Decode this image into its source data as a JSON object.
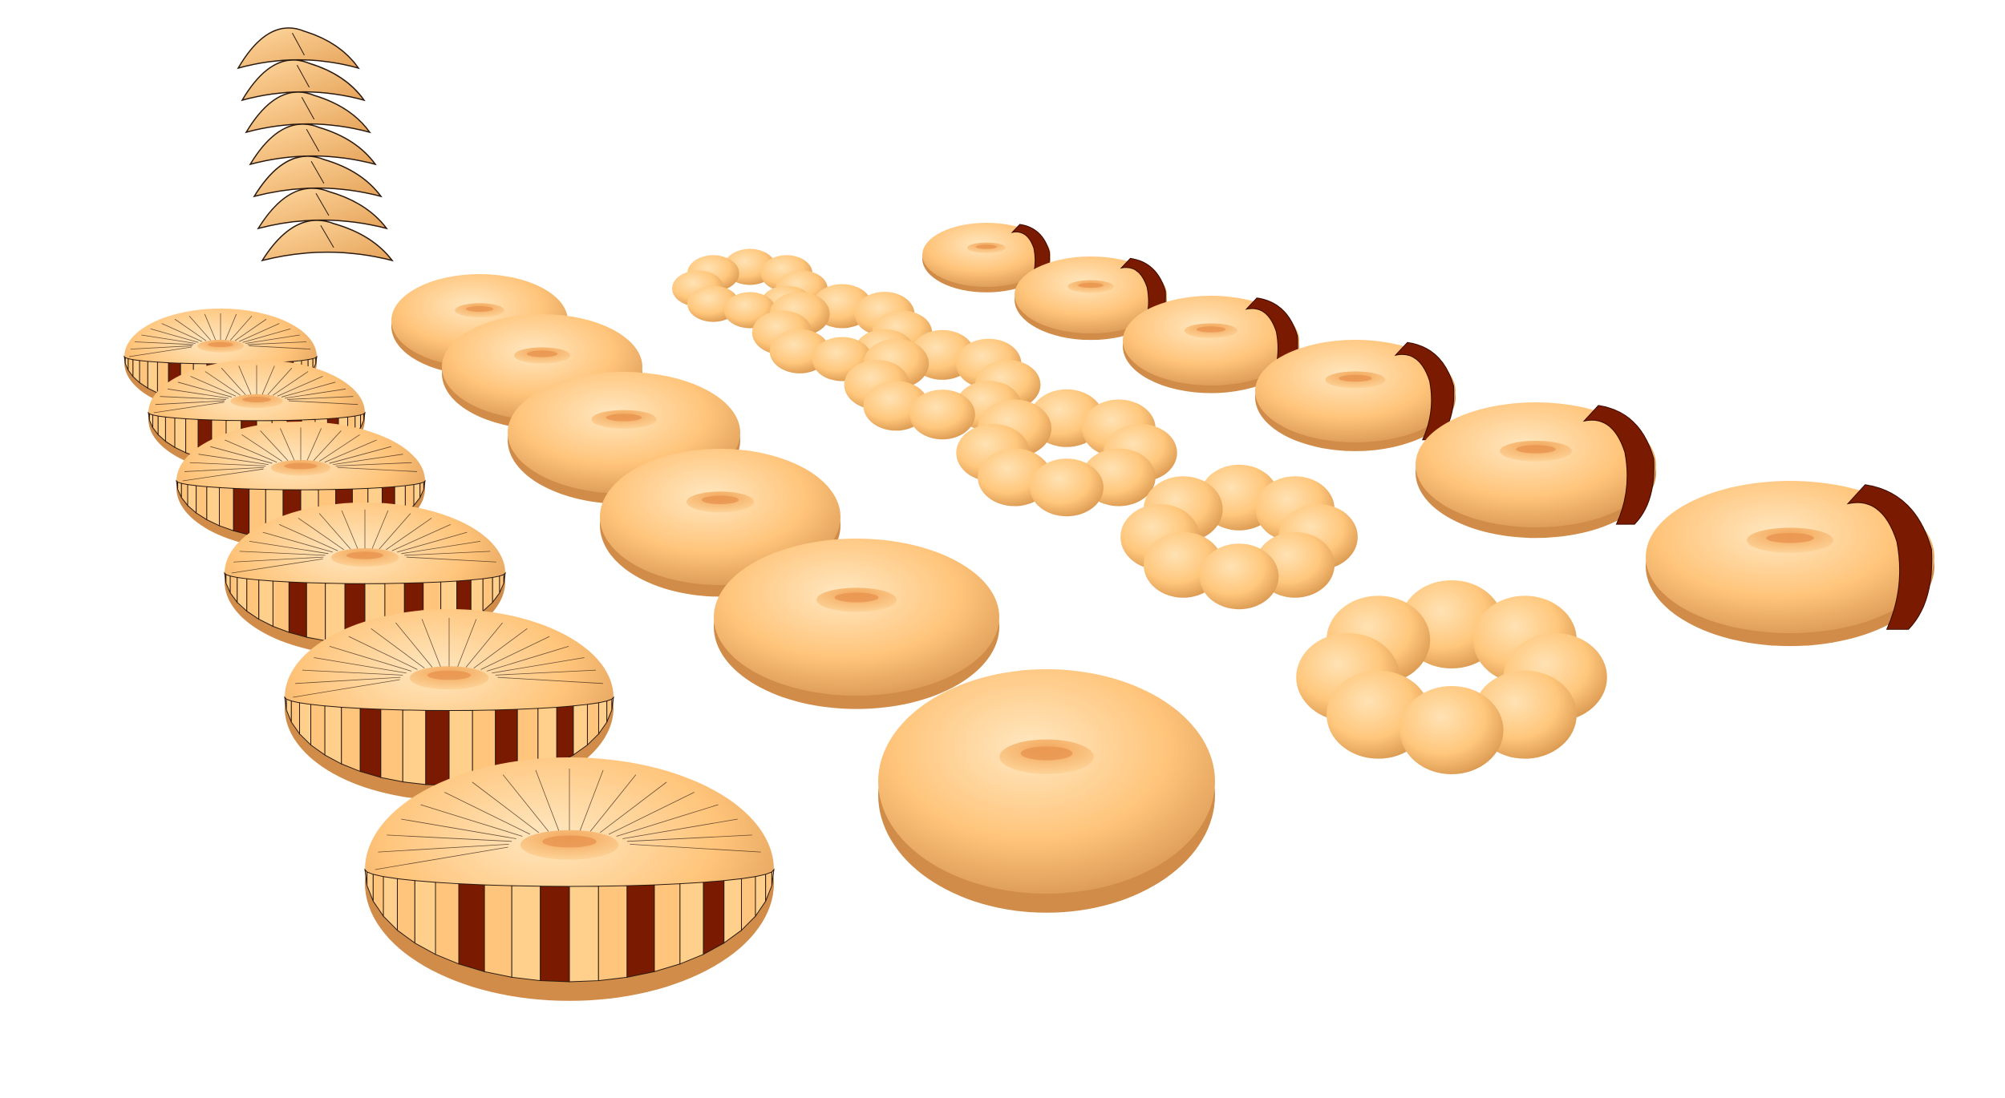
{
  "scene": {
    "description_text": "",
    "colors": {
      "background": "#ffffff",
      "dough_light": "#ffd9a0",
      "dough_mid": "#ffc170",
      "dough_dark": "#c9833f",
      "chocolate": "#7a1a00",
      "chocolate_light": "#9c2a08",
      "outline": "#2a1a10"
    },
    "groups": [
      {
        "name": "wedge-stack",
        "shape": "crescent-wedge",
        "count": 7
      },
      {
        "name": "striped-torus-row",
        "shape": "faceted-striped-torus",
        "count": 6
      },
      {
        "name": "smooth-torus-row",
        "shape": "smooth-torus",
        "count": 6
      },
      {
        "name": "bumpy-torus-row",
        "shape": "lobed-torus",
        "count": 6
      },
      {
        "name": "partial-band-torus-row",
        "shape": "torus-with-dark-band",
        "count": 6
      }
    ]
  }
}
